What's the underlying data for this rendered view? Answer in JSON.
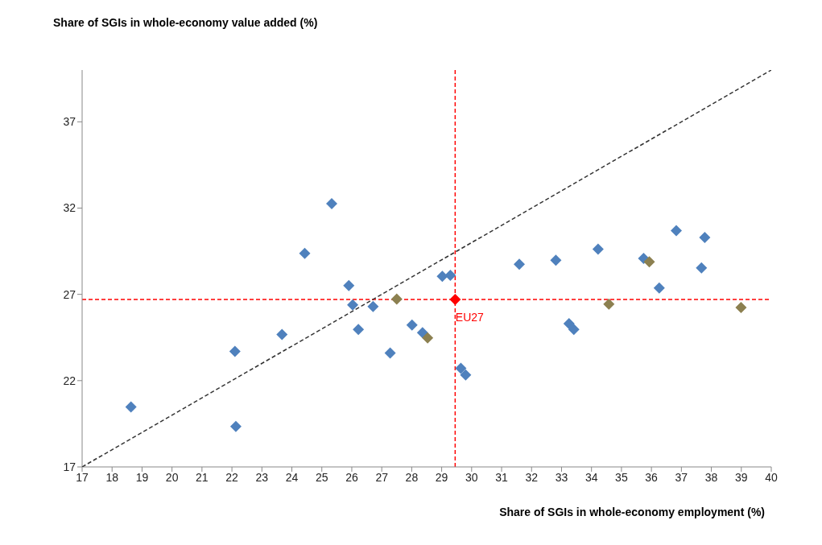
{
  "chart_data": {
    "type": "scatter",
    "xlabel": "Share of SGIs in whole-economy employment (%)",
    "ylabel": "Share of SGIs in whole-economy value added (%)",
    "xlim": [
      17,
      40
    ],
    "xticks": [
      17,
      18,
      19,
      20,
      21,
      22,
      23,
      24,
      25,
      26,
      27,
      28,
      29,
      30,
      31,
      32,
      33,
      34,
      35,
      36,
      37,
      38,
      39,
      40
    ],
    "ylim": [
      17,
      40
    ],
    "yticks": [
      17,
      22,
      27,
      32,
      37
    ],
    "grid": false,
    "legend": false,
    "marker": "diamond",
    "series": [
      {
        "color": "#4f81bd",
        "x": [
          18.63,
          22.1,
          22.13,
          23.67,
          24.43,
          25.33,
          25.9,
          26.03,
          26.22,
          26.71,
          27.28,
          28.01,
          28.36,
          29.02,
          29.29,
          29.64,
          29.8,
          31.59,
          32.81,
          33.25,
          33.41,
          34.22,
          35.74,
          36.26,
          36.83,
          37.67,
          37.78
        ],
        "values": [
          20.47,
          23.7,
          19.35,
          24.68,
          29.37,
          32.26,
          27.51,
          26.39,
          24.97,
          26.29,
          23.6,
          25.22,
          24.78,
          28.05,
          28.1,
          22.72,
          22.33,
          28.74,
          28.98,
          25.31,
          24.97,
          29.62,
          29.08,
          27.37,
          30.69,
          28.54,
          30.3
        ]
      },
      {
        "color": "#8c8050",
        "x": [
          27.5,
          28.53,
          34.58,
          35.93,
          38.99
        ],
        "values": [
          26.73,
          24.48,
          26.44,
          28.88,
          26.24
        ]
      },
      {
        "type": "line",
        "color": "#333333",
        "line_style": "dashed",
        "marker": "none",
        "x": [
          17,
          40
        ],
        "values": [
          17,
          40
        ]
      },
      {
        "name": "EU27",
        "color": "#ff0000",
        "x": [
          29.45
        ],
        "values": [
          26.7
        ]
      }
    ],
    "ref_lines": [
      {
        "axis": "x",
        "value": 29.45,
        "color": "#ff0000",
        "line_style": "dashed"
      },
      {
        "axis": "y",
        "value": 26.7,
        "color": "#ff0000",
        "line_style": "dashed"
      }
    ]
  }
}
